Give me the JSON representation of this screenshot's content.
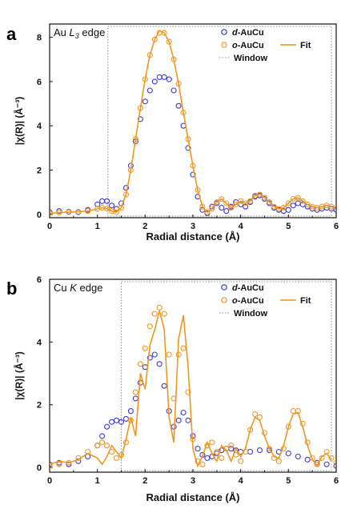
{
  "colors": {
    "d_series": "#3a3ad8",
    "o_series": "#f0961e",
    "fit": "#f0961e",
    "window": "#8a8a8a",
    "axis": "#111111"
  },
  "chart_data": [
    {
      "panel": "a",
      "type": "line",
      "edge_label_plain": "Au",
      "edge_label_italic": "L",
      "edge_label_sub": "3",
      "edge_label_rest": "edge",
      "xlabel": "Radial distance (Å)",
      "ylabel": "|χ(R)| (Å⁻³)",
      "xlim": [
        0,
        6
      ],
      "ylim": [
        -0.15,
        8.6
      ],
      "xticks": [
        "0",
        "1",
        "2",
        "3",
        "4",
        "5",
        "6"
      ],
      "yticks": [
        "0",
        "2",
        "4",
        "6",
        "8"
      ],
      "window": {
        "x": [
          1.22,
          5.9
        ],
        "label": "Window"
      },
      "legend": {
        "d_prefix": "d",
        "d_suffix": "-AuCu",
        "o_prefix": "o",
        "o_suffix": "-AuCu",
        "fit": "Fit",
        "window": "Window"
      },
      "series": [
        {
          "key": "d",
          "style": "markers",
          "x": [
            0,
            0.2,
            0.4,
            0.6,
            0.8,
            1.0,
            1.1,
            1.2,
            1.3,
            1.4,
            1.5,
            1.6,
            1.7,
            1.8,
            1.9,
            2.0,
            2.1,
            2.2,
            2.3,
            2.4,
            2.5,
            2.6,
            2.7,
            2.8,
            2.9,
            3.0,
            3.1,
            3.2,
            3.3,
            3.4,
            3.5,
            3.6,
            3.7,
            3.8,
            3.9,
            4.0,
            4.1,
            4.2,
            4.3,
            4.4,
            4.5,
            4.6,
            4.7,
            4.8,
            4.9,
            5.0,
            5.1,
            5.2,
            5.3,
            5.4,
            5.5,
            5.6,
            5.7,
            5.8,
            5.9,
            6.0
          ],
          "y": [
            0.1,
            0.15,
            0.12,
            0.1,
            0.2,
            0.45,
            0.6,
            0.6,
            0.4,
            0.25,
            0.5,
            1.2,
            2.2,
            3.3,
            4.3,
            5.1,
            5.6,
            6.0,
            6.2,
            6.2,
            6.1,
            5.6,
            4.9,
            4.0,
            3.0,
            1.8,
            0.8,
            0.2,
            0.05,
            0.35,
            0.5,
            0.3,
            0.15,
            0.35,
            0.55,
            0.45,
            0.35,
            0.55,
            0.8,
            0.85,
            0.7,
            0.5,
            0.3,
            0.2,
            0.15,
            0.2,
            0.4,
            0.5,
            0.45,
            0.35,
            0.25,
            0.2,
            0.25,
            0.3,
            0.25,
            0.2
          ]
        },
        {
          "key": "o",
          "style": "markers",
          "x": [
            0,
            0.2,
            0.4,
            0.6,
            0.8,
            1.0,
            1.1,
            1.2,
            1.3,
            1.4,
            1.5,
            1.6,
            1.7,
            1.8,
            1.9,
            2.0,
            2.1,
            2.2,
            2.3,
            2.4,
            2.5,
            2.6,
            2.7,
            2.8,
            2.9,
            3.0,
            3.1,
            3.2,
            3.3,
            3.4,
            3.5,
            3.6,
            3.7,
            3.8,
            3.9,
            4.0,
            4.1,
            4.2,
            4.3,
            4.4,
            4.5,
            4.6,
            4.7,
            4.8,
            4.9,
            5.0,
            5.1,
            5.2,
            5.3,
            5.4,
            5.5,
            5.6,
            5.7,
            5.8,
            5.9,
            6.0
          ],
          "y": [
            0.05,
            0.08,
            0.1,
            0.12,
            0.15,
            0.25,
            0.3,
            0.25,
            0.15,
            0.1,
            0.3,
            0.9,
            2.0,
            3.4,
            4.8,
            6.1,
            7.2,
            7.9,
            8.2,
            8.2,
            7.8,
            7.0,
            5.9,
            4.6,
            3.4,
            2.2,
            1.1,
            0.35,
            0.1,
            0.25,
            0.55,
            0.7,
            0.5,
            0.3,
            0.45,
            0.6,
            0.5,
            0.6,
            0.85,
            0.9,
            0.75,
            0.55,
            0.35,
            0.25,
            0.3,
            0.5,
            0.7,
            0.75,
            0.6,
            0.45,
            0.35,
            0.3,
            0.35,
            0.4,
            0.35,
            0.3
          ]
        },
        {
          "key": "fit",
          "style": "line",
          "x": [
            0,
            0.2,
            0.4,
            0.6,
            0.8,
            1.0,
            1.1,
            1.2,
            1.3,
            1.4,
            1.5,
            1.6,
            1.7,
            1.8,
            1.9,
            2.0,
            2.1,
            2.2,
            2.3,
            2.4,
            2.5,
            2.6,
            2.7,
            2.8,
            2.9,
            3.0,
            3.1,
            3.2,
            3.3,
            3.4,
            3.5,
            3.6,
            3.7,
            3.8,
            3.9,
            4.0,
            4.1,
            4.2,
            4.3,
            4.4,
            4.5,
            4.6,
            4.7,
            4.8,
            4.9,
            5.0,
            5.1,
            5.2,
            5.3,
            5.4,
            5.5,
            5.6,
            5.7,
            5.8,
            5.9
          ],
          "y": [
            0.05,
            0.08,
            0.1,
            0.12,
            0.15,
            0.25,
            0.3,
            0.25,
            0.15,
            0.1,
            0.3,
            0.9,
            2.0,
            3.4,
            4.8,
            6.1,
            7.2,
            7.9,
            8.3,
            8.2,
            7.8,
            7.0,
            5.9,
            4.6,
            3.4,
            2.2,
            1.1,
            0.35,
            0.1,
            0.25,
            0.55,
            0.7,
            0.5,
            0.3,
            0.45,
            0.6,
            0.5,
            0.6,
            0.85,
            0.9,
            0.75,
            0.55,
            0.35,
            0.25,
            0.3,
            0.5,
            0.7,
            0.75,
            0.6,
            0.45,
            0.35,
            0.3,
            0.35,
            0.4,
            0.35
          ]
        }
      ]
    },
    {
      "panel": "b",
      "type": "line",
      "edge_label_plain": "Cu",
      "edge_label_italic": "K",
      "edge_label_sub": "",
      "edge_label_rest": "edge",
      "xlabel": "Radial distance (Å)",
      "ylabel": "|χ(R)| (Å⁻³)",
      "xlim": [
        0,
        6
      ],
      "ylim": [
        -0.15,
        6.0
      ],
      "xticks": [
        "0",
        "1",
        "2",
        "3",
        "4",
        "5",
        "6"
      ],
      "yticks": [
        "0",
        "2",
        "4",
        "6"
      ],
      "window": {
        "x": [
          1.5,
          5.9
        ],
        "label": "Window"
      },
      "legend": {
        "d_prefix": "d",
        "d_suffix": "-AuCu",
        "o_prefix": "o",
        "o_suffix": "-AuCu",
        "fit": "Fit",
        "window": "Window"
      },
      "series": [
        {
          "key": "d",
          "style": "markers",
          "x": [
            0,
            0.2,
            0.4,
            0.6,
            0.8,
            1.0,
            1.1,
            1.2,
            1.3,
            1.4,
            1.5,
            1.6,
            1.7,
            1.8,
            1.9,
            2.0,
            2.1,
            2.2,
            2.3,
            2.4,
            2.5,
            2.6,
            2.7,
            2.8,
            2.9,
            3.0,
            3.1,
            3.2,
            3.3,
            3.4,
            3.5,
            3.6,
            3.7,
            3.8,
            3.9,
            4.0,
            4.2,
            4.4,
            4.6,
            4.8,
            5.0,
            5.2,
            5.4,
            5.6,
            5.8,
            6.0
          ],
          "y": [
            0.1,
            0.15,
            0.1,
            0.2,
            0.35,
            0.7,
            1.0,
            1.3,
            1.45,
            1.5,
            1.45,
            1.55,
            1.8,
            2.2,
            2.7,
            3.2,
            3.5,
            3.6,
            3.3,
            2.6,
            1.8,
            1.3,
            1.5,
            1.75,
            1.5,
            1.0,
            0.6,
            0.4,
            0.3,
            0.35,
            0.45,
            0.55,
            0.6,
            0.6,
            0.55,
            0.5,
            0.5,
            0.55,
            0.55,
            0.5,
            0.45,
            0.35,
            0.25,
            0.15,
            0.1,
            0.05
          ]
        },
        {
          "key": "o",
          "style": "markers",
          "x": [
            0,
            0.2,
            0.4,
            0.6,
            0.8,
            1.0,
            1.1,
            1.2,
            1.3,
            1.4,
            1.5,
            1.6,
            1.7,
            1.8,
            1.9,
            2.0,
            2.1,
            2.2,
            2.3,
            2.4,
            2.5,
            2.6,
            2.7,
            2.8,
            2.9,
            3.0,
            3.1,
            3.2,
            3.3,
            3.4,
            3.5,
            3.6,
            3.7,
            3.8,
            3.9,
            4.0,
            4.1,
            4.2,
            4.3,
            4.4,
            4.5,
            4.6,
            4.7,
            4.8,
            4.9,
            5.0,
            5.1,
            5.2,
            5.3,
            5.4,
            5.5,
            5.6,
            5.7,
            5.8,
            5.9,
            6.0
          ],
          "y": [
            0.05,
            0.1,
            0.15,
            0.3,
            0.5,
            0.7,
            0.8,
            0.7,
            0.5,
            0.3,
            0.4,
            0.8,
            1.5,
            2.4,
            3.3,
            3.8,
            4.5,
            4.9,
            5.1,
            4.9,
            3.6,
            2.2,
            3.6,
            3.8,
            2.4,
            0.9,
            0.2,
            0.1,
            0.7,
            0.8,
            0.5,
            0.3,
            0.6,
            0.7,
            0.4,
            0.2,
            0.5,
            1.2,
            1.7,
            1.6,
            1.1,
            0.6,
            0.3,
            0.2,
            0.6,
            1.3,
            1.8,
            1.8,
            1.4,
            0.8,
            0.3,
            0.1,
            0.3,
            0.5,
            0.3,
            0.15
          ]
        },
        {
          "key": "fit",
          "style": "line",
          "x": [
            0,
            0.2,
            0.4,
            0.6,
            0.8,
            1.0,
            1.1,
            1.2,
            1.3,
            1.4,
            1.5,
            1.6,
            1.7,
            1.8,
            1.9,
            2.0,
            2.1,
            2.2,
            2.3,
            2.4,
            2.5,
            2.6,
            2.7,
            2.8,
            2.9,
            3.0,
            3.1,
            3.2,
            3.3,
            3.4,
            3.5,
            3.6,
            3.7,
            3.8,
            3.9,
            4.0,
            4.1,
            4.2,
            4.3,
            4.4,
            4.5,
            4.6,
            4.7,
            4.8,
            4.9,
            5.0,
            5.1,
            5.2,
            5.3,
            5.4,
            5.5,
            5.6,
            5.7,
            5.8,
            5.9
          ],
          "y": [
            0.1,
            0.2,
            0.15,
            0.25,
            0.45,
            0.3,
            0.1,
            0.35,
            0.7,
            0.5,
            0.3,
            0.9,
            1.6,
            1.0,
            3.0,
            2.5,
            3.9,
            4.4,
            5.0,
            4.4,
            1.6,
            0.8,
            4.1,
            4.85,
            3.2,
            0.6,
            0.05,
            0.35,
            0.8,
            0.45,
            0.2,
            0.7,
            0.55,
            0.2,
            0.6,
            0.35,
            0.6,
            1.2,
            1.6,
            1.5,
            1.0,
            0.6,
            0.35,
            0.3,
            0.7,
            1.3,
            1.7,
            1.75,
            1.3,
            0.7,
            0.25,
            0.05,
            0.35,
            0.45,
            0.25
          ]
        }
      ]
    }
  ]
}
